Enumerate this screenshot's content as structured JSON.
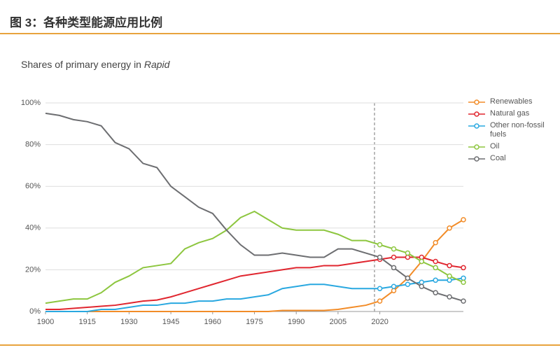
{
  "header": {
    "title": "图 3：各种类型能源应用比例"
  },
  "chart_data": {
    "type": "line",
    "subtitle": "Shares of primary energy in",
    "subtitle_emphasis": "Rapid",
    "x": [
      1900,
      1905,
      1910,
      1915,
      1920,
      1925,
      1930,
      1935,
      1940,
      1945,
      1950,
      1955,
      1960,
      1965,
      1970,
      1975,
      1980,
      1985,
      1990,
      1995,
      2000,
      2005,
      2010,
      2015,
      2020,
      2025,
      2030,
      2035,
      2040,
      2045,
      2050
    ],
    "xlim": [
      1900,
      2050
    ],
    "xticks": [
      1900,
      1915,
      1930,
      1945,
      1960,
      1975,
      1990,
      2005,
      2020
    ],
    "ylim": [
      0,
      100
    ],
    "yticks": [
      {
        "value": 0,
        "label": "0%"
      },
      {
        "value": 20,
        "label": "20%"
      },
      {
        "value": 40,
        "label": "40%"
      },
      {
        "value": 60,
        "label": "60%"
      },
      {
        "value": 80,
        "label": "80%"
      },
      {
        "value": 100,
        "label": "100%"
      }
    ],
    "grid": true,
    "series": [
      {
        "name": "Renewables",
        "color": "#f28c28",
        "values": [
          0,
          0,
          0,
          0,
          0,
          0,
          0,
          0,
          0,
          0,
          0,
          0,
          0,
          0,
          0,
          0,
          0,
          0.5,
          0.5,
          0.5,
          0.5,
          1,
          2,
          3,
          5,
          10,
          16,
          24,
          33,
          40,
          44
        ]
      },
      {
        "name": "Natural gas",
        "color": "#e0262f",
        "values": [
          1,
          1,
          1.5,
          2,
          2.5,
          3,
          4,
          5,
          5.5,
          7,
          9,
          11,
          13,
          15,
          17,
          18,
          19,
          20,
          21,
          21,
          22,
          22,
          23,
          24,
          25,
          26,
          26,
          26,
          24,
          22,
          21
        ]
      },
      {
        "name": "Other non-fossil fuels",
        "color": "#29a8e0",
        "values": [
          0,
          0,
          0,
          0,
          1,
          1,
          2,
          3,
          3,
          4,
          4,
          5,
          5,
          6,
          6,
          7,
          8,
          11,
          12,
          13,
          13,
          12,
          11,
          11,
          11,
          12,
          13,
          14,
          15,
          15,
          16
        ]
      },
      {
        "name": "Oil",
        "color": "#8dc63f",
        "values": [
          4,
          5,
          6,
          6,
          9,
          14,
          17,
          21,
          22,
          23,
          30,
          33,
          35,
          39,
          45,
          48,
          44,
          40,
          39,
          39,
          39,
          37,
          34,
          34,
          32,
          30,
          28,
          24,
          21,
          17,
          14
        ]
      },
      {
        "name": "Coal",
        "color": "#6d6e71",
        "values": [
          95,
          94,
          92,
          91,
          89,
          81,
          78,
          71,
          69,
          60,
          55,
          50,
          47,
          39,
          32,
          27,
          27,
          28,
          27,
          26,
          26,
          30,
          30,
          28,
          26,
          21,
          16,
          12,
          9,
          7,
          5
        ]
      }
    ]
  }
}
